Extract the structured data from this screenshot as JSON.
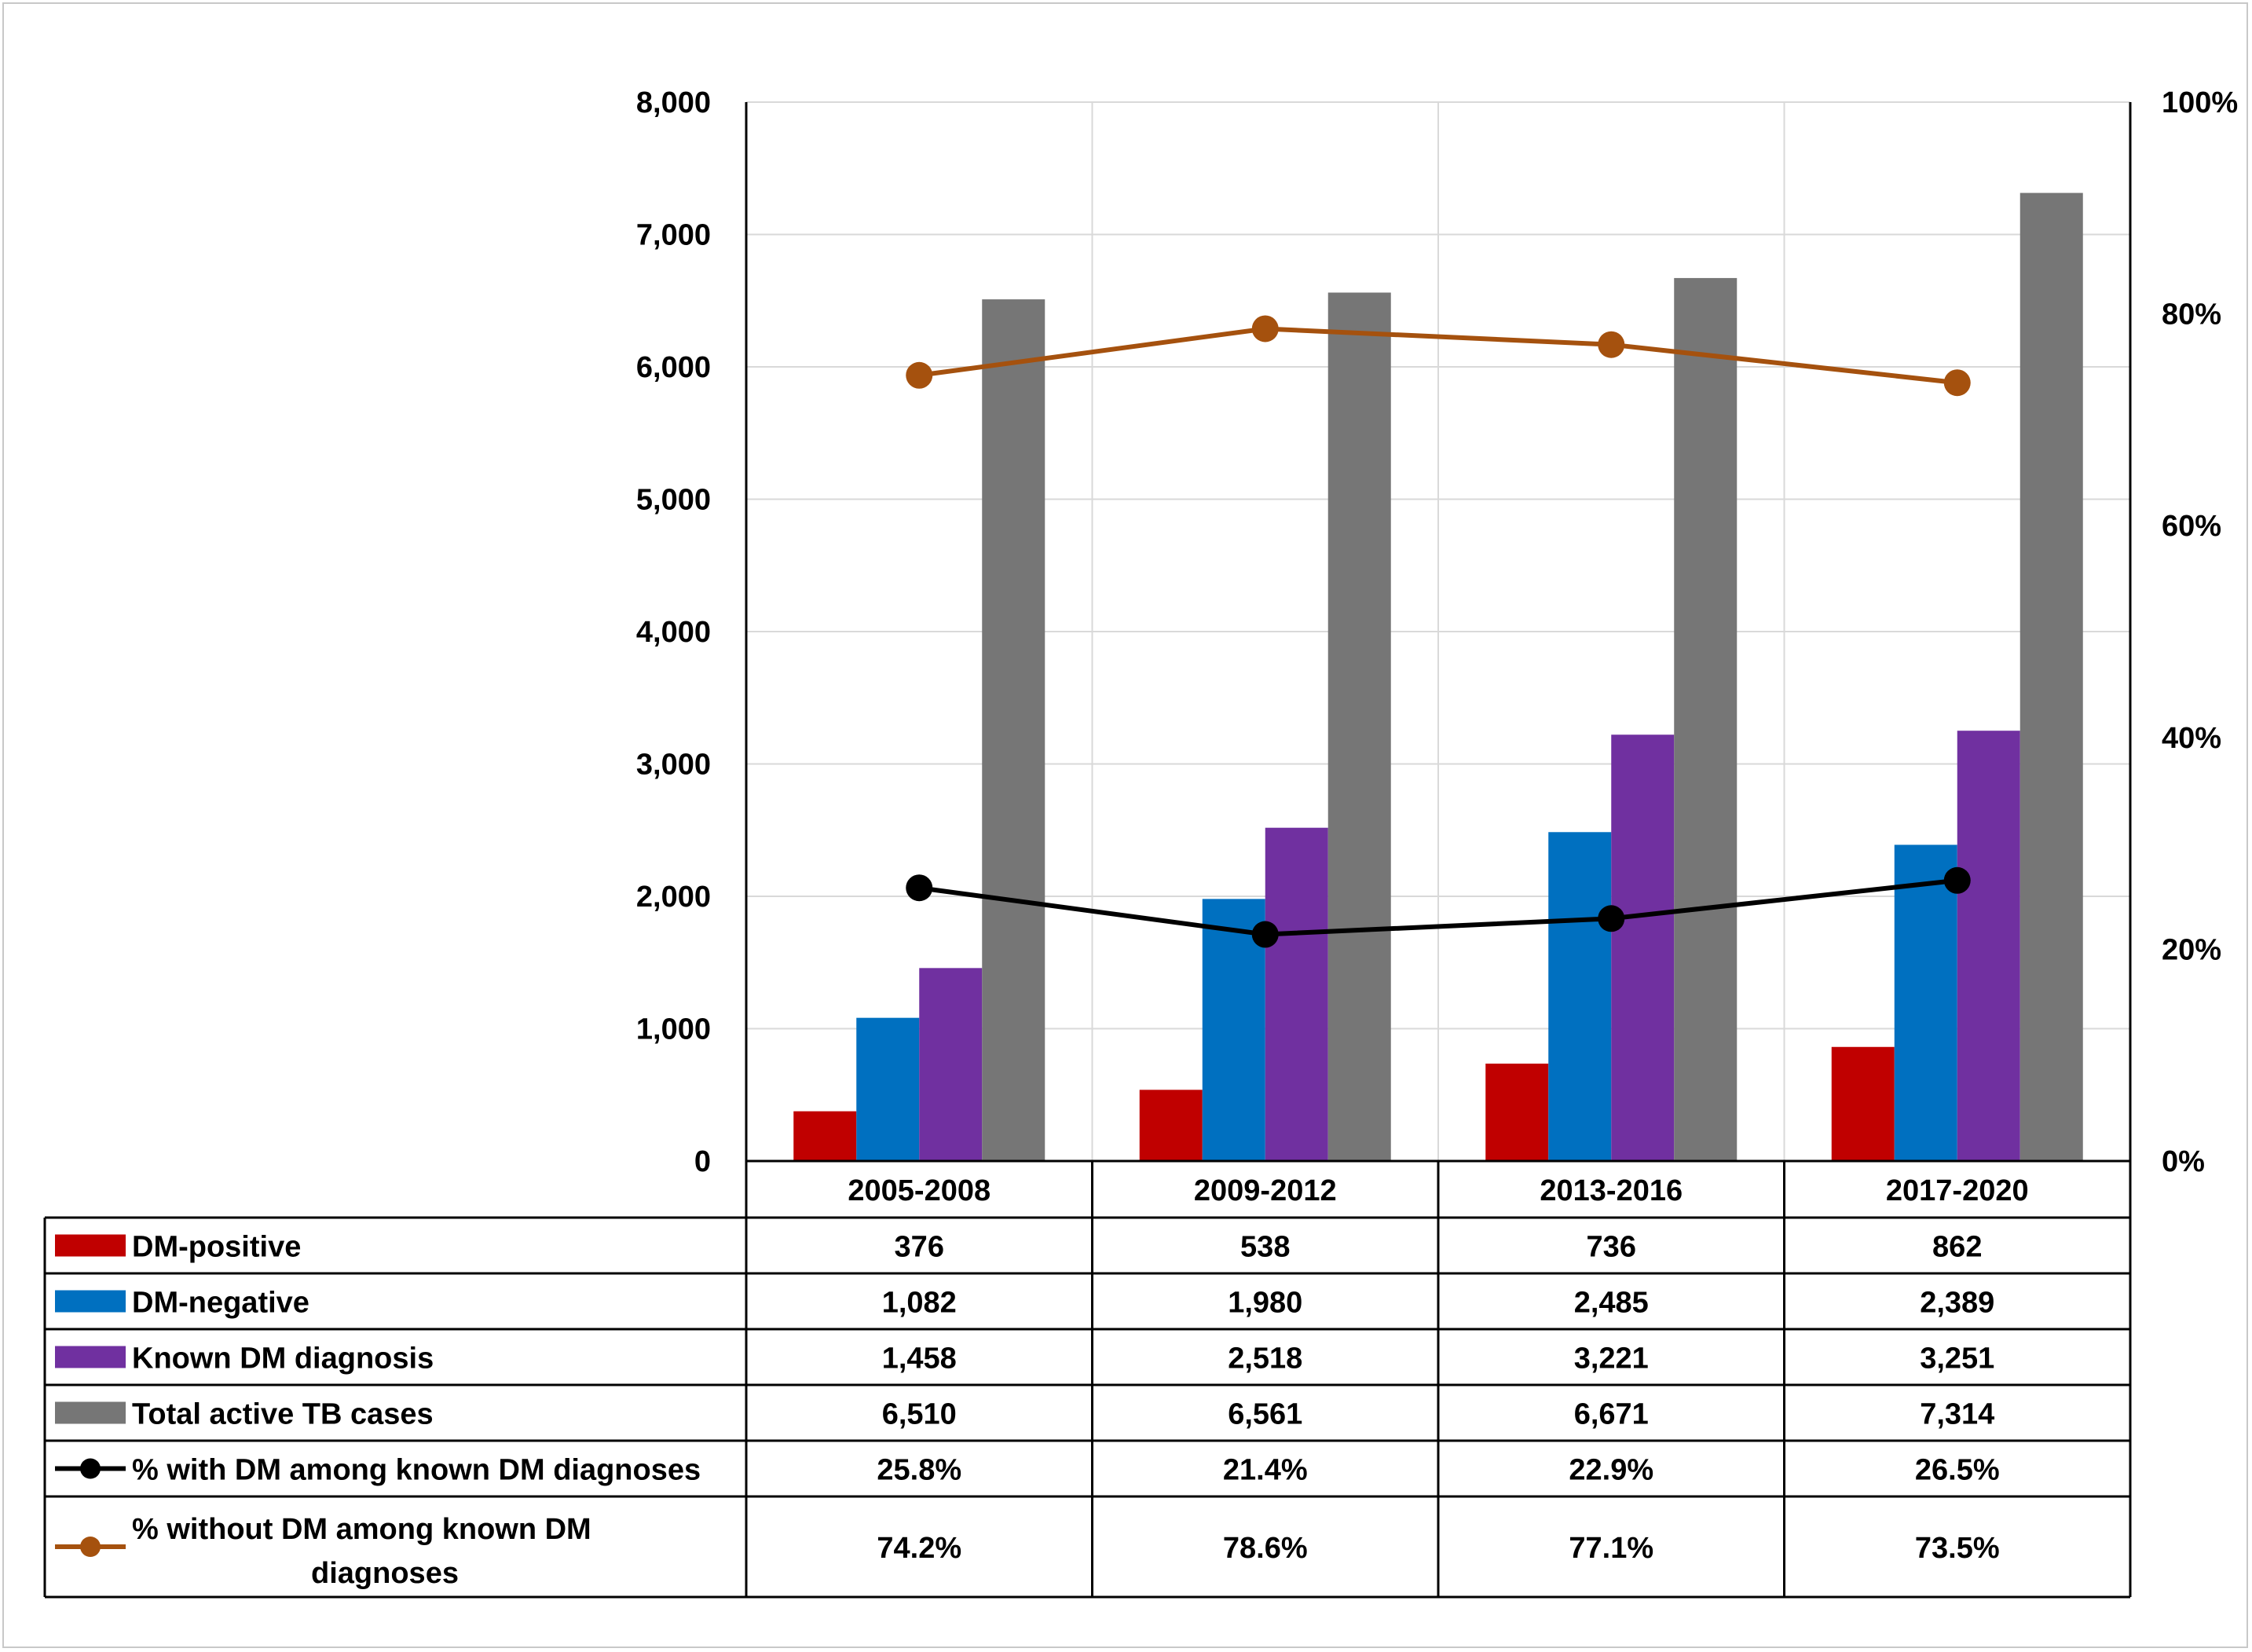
{
  "chart_data": {
    "type": "bar",
    "categories": [
      "2005-2008",
      "2009-2012",
      "2013-2016",
      "2017-2020"
    ],
    "ylim": [
      0,
      8000
    ],
    "y_ticks": [
      "0",
      "1,000",
      "2,000",
      "3,000",
      "4,000",
      "5,000",
      "6,000",
      "7,000",
      "8,000"
    ],
    "y2lim": [
      0,
      100
    ],
    "y2_ticks": [
      "0%",
      "20%",
      "40%",
      "60%",
      "80%",
      "100%"
    ],
    "grid": true,
    "legend": "data-table",
    "series": [
      {
        "name": "DM-positive",
        "type": "bar",
        "axis": "left",
        "color": "#c00000",
        "values": [
          376,
          538,
          736,
          862
        ],
        "labels": [
          "376",
          "538",
          "736",
          "862"
        ]
      },
      {
        "name": "DM-negative",
        "type": "bar",
        "axis": "left",
        "color": "#0070c0",
        "values": [
          1082,
          1980,
          2485,
          2389
        ],
        "labels": [
          "1,082",
          "1,980",
          "2,485",
          "2,389"
        ]
      },
      {
        "name": "Known DM diagnosis",
        "type": "bar",
        "axis": "left",
        "color": "#7030a0",
        "values": [
          1458,
          2518,
          3221,
          3251
        ],
        "labels": [
          "1,458",
          "2,518",
          "3,221",
          "3,251"
        ]
      },
      {
        "name": "Total active TB cases",
        "type": "bar",
        "axis": "left",
        "color": "#767676",
        "values": [
          6510,
          6561,
          6671,
          7314
        ],
        "labels": [
          "6,510",
          "6,561",
          "6,671",
          "7,314"
        ]
      },
      {
        "name": "% with DM among known DM diagnoses",
        "type": "line",
        "axis": "right",
        "color": "#000000",
        "values": [
          25.8,
          21.4,
          22.9,
          26.5
        ],
        "labels": [
          "25.8%",
          "21.4%",
          "22.9%",
          "26.5%"
        ]
      },
      {
        "name_lines": [
          "%  without DM among known DM",
          "diagnoses"
        ],
        "type": "line",
        "axis": "right",
        "color": "#a5510e",
        "values": [
          74.2,
          78.6,
          77.1,
          73.5
        ],
        "labels": [
          "74.2%",
          "78.6%",
          "77.1%",
          "73.5%"
        ]
      }
    ]
  }
}
